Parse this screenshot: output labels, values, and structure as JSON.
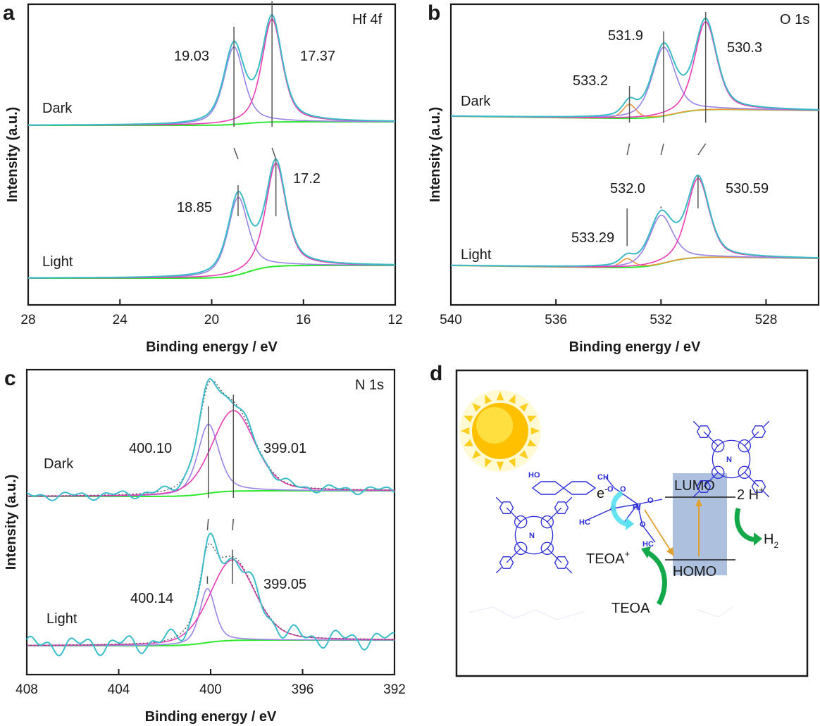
{
  "panels": [
    {
      "letter": "a",
      "tag": "Hf 4f",
      "xlabel": "Binding energy / eV",
      "ylabel": "Intensity (a.u.)",
      "xlim": [
        28,
        12
      ],
      "xticks": [
        "28",
        "24",
        "20",
        "16",
        "12"
      ],
      "states": [
        {
          "name": "Dark",
          "peaks": [
            {
              "pos": 19.03,
              "label": "19.03",
              "h": 1.0,
              "w": 1.05,
              "g": 0.6
            },
            {
              "pos": 17.37,
              "label": "17.37",
              "h": 1.33,
              "w": 1.05,
              "g": 0.6
            }
          ]
        },
        {
          "name": "Light",
          "peaks": [
            {
              "pos": 18.85,
              "label": "18.85",
              "h": 1.0,
              "w": 1.05,
              "g": 0.6
            },
            {
              "pos": 17.2,
              "label": "17.2",
              "h": 1.33,
              "w": 1.05,
              "g": 0.6
            }
          ]
        }
      ]
    },
    {
      "letter": "b",
      "tag": "O 1s",
      "xlabel": "Binding energy / eV",
      "ylabel": "Intensity (a.u.)",
      "xlim": [
        540,
        526
      ],
      "xticks": [
        "540",
        "536",
        "532",
        "528"
      ],
      "states": [
        {
          "name": "Dark",
          "peaks": [
            {
              "pos": 533.2,
              "label": "533.2",
              "h": 0.16,
              "w": 0.6,
              "g": 0.5
            },
            {
              "pos": 531.9,
              "label": "531.9",
              "h": 0.78,
              "w": 1.05,
              "g": 0.5
            },
            {
              "pos": 530.3,
              "label": "530.3",
              "h": 1.0,
              "w": 1.0,
              "g": 0.5
            }
          ]
        },
        {
          "name": "Light",
          "peaks": [
            {
              "pos": 533.29,
              "label": "533.29",
              "h": 0.1,
              "w": 0.6,
              "g": 0.5
            },
            {
              "pos": 532.0,
              "label": "532.0",
              "h": 0.55,
              "w": 1.05,
              "g": 0.5
            },
            {
              "pos": 530.59,
              "label": "530.59",
              "h": 0.9,
              "w": 1.0,
              "g": 0.5
            }
          ]
        }
      ]
    },
    {
      "letter": "c",
      "tag": "N 1s",
      "xlabel": "Binding energy / eV",
      "ylabel": "Intensity (a.u.)",
      "xlim": [
        408,
        392
      ],
      "xticks": [
        "408",
        "404",
        "400",
        "396",
        "392"
      ],
      "states": [
        {
          "name": "Dark",
          "peaks": [
            {
              "pos": 400.1,
              "label": "400.10",
              "h": 0.83,
              "w": 1.1,
              "g": 0.5
            },
            {
              "pos": 399.01,
              "label": "399.01",
              "h": 0.97,
              "w": 2.2,
              "g": 0.3
            }
          ]
        },
        {
          "name": "Light",
          "peaks": [
            {
              "pos": 400.14,
              "label": "400.14",
              "h": 0.65,
              "w": 0.8,
              "g": 0.5
            },
            {
              "pos": 399.05,
              "label": "399.05",
              "h": 0.97,
              "w": 2.3,
              "g": 0.3
            }
          ]
        }
      ]
    }
  ],
  "scheme": {
    "letter": "d",
    "labels": {
      "lumo": "LUMO",
      "homo": "HOMO",
      "h_plus": "2 H",
      "h_plus_sup": "+",
      "h2": "H",
      "h2_sub": "2",
      "teoa_plus": "TEOA",
      "teoa_plus_sup": "+",
      "teoa": "TEOA",
      "electron": "e",
      "electron_sup": "-"
    }
  },
  "colors": {
    "envelope": "#3cbcc8",
    "raw": "#5a5a5a",
    "peak_main": "#e83cb4",
    "peak_second": "#9a82e6",
    "peak_third": "#f0963c",
    "background": "#2ee82e",
    "guide": "#555555",
    "molecule": "#2b2bd8",
    "band": "#9fb6d8",
    "arrow_green": "#15a84a",
    "arrow_orange": "#e0a030",
    "sun": "#ffc000",
    "cyan_arrow": "#58e0f0"
  }
}
